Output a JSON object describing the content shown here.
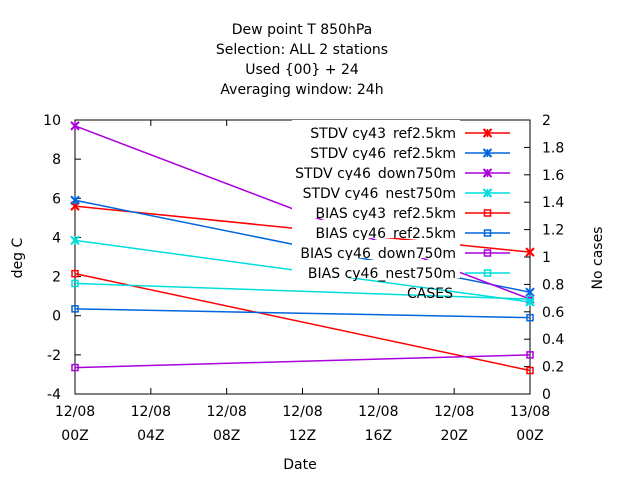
{
  "chart_data": {
    "type": "line",
    "title_lines": [
      "Dew point T 850hPa",
      "Selection: ALL      2 stations",
      "Used {00} + 24",
      "Averaging window: 24h"
    ],
    "xlabel": "Date",
    "ylabel": "deg C",
    "y2label": "No cases",
    "x_ticks": [
      {
        "x": 0,
        "line1": "12/08",
        "line2": "00Z"
      },
      {
        "x": 4,
        "line1": "12/08",
        "line2": "04Z"
      },
      {
        "x": 8,
        "line1": "12/08",
        "line2": "08Z"
      },
      {
        "x": 12,
        "line1": "12/08",
        "line2": "12Z"
      },
      {
        "x": 16,
        "line1": "12/08",
        "line2": "16Z"
      },
      {
        "x": 20,
        "line1": "12/08",
        "line2": "20Z"
      },
      {
        "x": 24,
        "line1": "13/08",
        "line2": "00Z"
      }
    ],
    "xlim": [
      0,
      24
    ],
    "ylim": [
      -4,
      10
    ],
    "y_ticks": [
      -4,
      -2,
      0,
      2,
      4,
      6,
      8,
      10
    ],
    "y2lim": [
      0,
      2
    ],
    "y2_ticks": [
      "0",
      "0.2",
      "0.4",
      "0.6",
      "0.8",
      "1",
      "1.2",
      "1.4",
      "1.6",
      "1.8",
      "2"
    ],
    "grid": false,
    "legend_position": "top-right",
    "series": [
      {
        "name": "STDV cy43_ref2.5km",
        "color": "#ff0000",
        "marker": "x-star",
        "x": [
          0,
          24
        ],
        "y": [
          5.6,
          3.25
        ]
      },
      {
        "name": "STDV cy46_ref2.5km",
        "color": "#0066dd",
        "marker": "x-star",
        "x": [
          0,
          24
        ],
        "y": [
          5.9,
          1.2
        ]
      },
      {
        "name": "STDV cy46_down750m",
        "color": "#aa00dd",
        "marker": "x-star",
        "x": [
          0,
          24
        ],
        "y": [
          9.7,
          0.85
        ]
      },
      {
        "name": "STDV cy46_nest750m",
        "color": "#00dddd",
        "marker": "x-star",
        "x": [
          0,
          24
        ],
        "y": [
          3.85,
          0.7
        ]
      },
      {
        "name": "BIAS cy43_ref2.5km",
        "color": "#ff0000",
        "marker": "square",
        "x": [
          0,
          24
        ],
        "y": [
          2.15,
          -2.8
        ]
      },
      {
        "name": "BIAS cy46_ref2.5km",
        "color": "#0066dd",
        "marker": "square",
        "x": [
          0,
          24
        ],
        "y": [
          0.35,
          -0.1
        ]
      },
      {
        "name": "BIAS cy46_down750m",
        "color": "#aa00dd",
        "marker": "square",
        "x": [
          0,
          24
        ],
        "y": [
          -2.65,
          -2.0
        ]
      },
      {
        "name": "BIAS cy46_nest750m",
        "color": "#00dddd",
        "marker": "square",
        "x": [
          0,
          24
        ],
        "y": [
          1.65,
          0.85
        ]
      }
    ],
    "cases_label": "CASES"
  }
}
